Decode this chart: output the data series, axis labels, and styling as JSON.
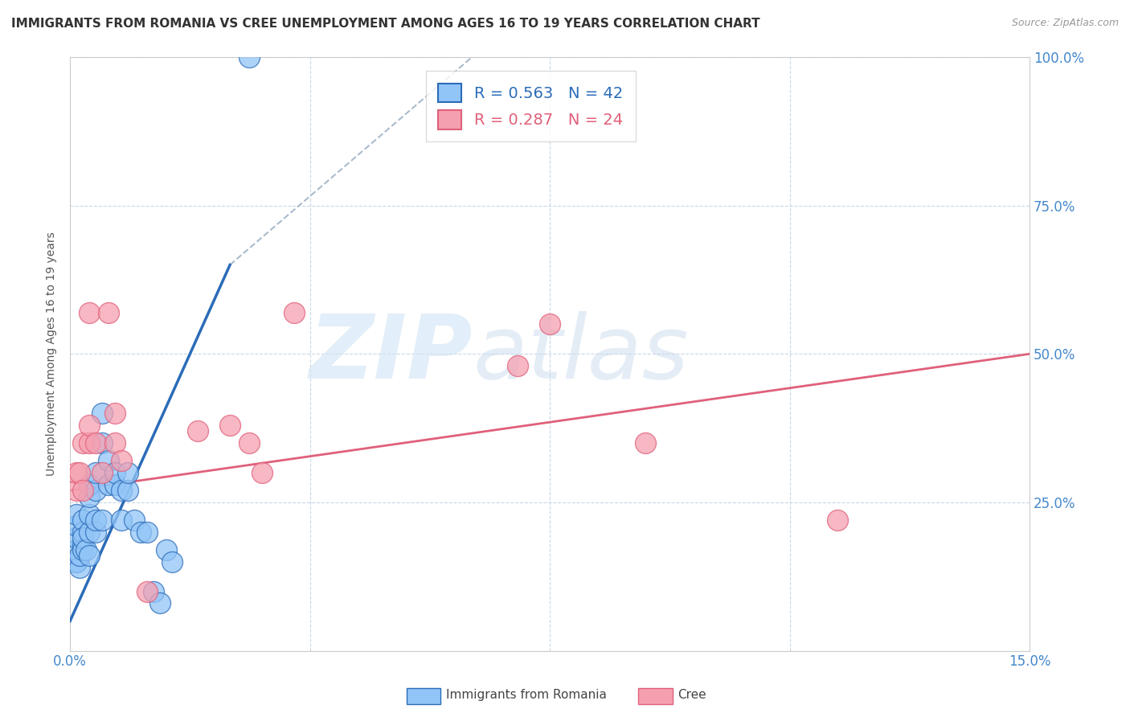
{
  "title": "IMMIGRANTS FROM ROMANIA VS CREE UNEMPLOYMENT AMONG AGES 16 TO 19 YEARS CORRELATION CHART",
  "source": "Source: ZipAtlas.com",
  "ylabel": "Unemployment Among Ages 16 to 19 years",
  "xlim": [
    0.0,
    0.15
  ],
  "ylim": [
    0.0,
    1.0
  ],
  "xticks": [
    0.0,
    0.0375,
    0.075,
    0.1125,
    0.15
  ],
  "xticklabels": [
    "0.0%",
    "",
    "",
    "",
    "15.0%"
  ],
  "yticks": [
    0.0,
    0.25,
    0.5,
    0.75,
    1.0
  ],
  "yticklabels_right": [
    "",
    "25.0%",
    "50.0%",
    "75.0%",
    "100.0%"
  ],
  "romania_R": 0.563,
  "romania_N": 42,
  "cree_R": 0.287,
  "cree_N": 24,
  "romania_color": "#92C5F7",
  "cree_color": "#F5A0B0",
  "romania_line_color": "#2B6CB8",
  "cree_line_color": "#E0607A",
  "background_color": "#ffffff",
  "grid_color": "#c8d8e8",
  "title_fontsize": 11,
  "axis_label_fontsize": 10,
  "tick_fontsize": 12,
  "legend_fontsize": 14,
  "romania_x": [
    0.001,
    0.001,
    0.001,
    0.001,
    0.001,
    0.001,
    0.0015,
    0.0015,
    0.002,
    0.002,
    0.002,
    0.002,
    0.002,
    0.0025,
    0.003,
    0.003,
    0.003,
    0.003,
    0.003,
    0.004,
    0.004,
    0.004,
    0.004,
    0.005,
    0.005,
    0.005,
    0.006,
    0.006,
    0.007,
    0.007,
    0.008,
    0.008,
    0.009,
    0.009,
    0.01,
    0.011,
    0.012,
    0.013,
    0.014,
    0.015,
    0.016,
    0.028
  ],
  "romania_y": [
    0.15,
    0.17,
    0.19,
    0.21,
    0.23,
    0.15,
    0.14,
    0.16,
    0.18,
    0.2,
    0.22,
    0.17,
    0.19,
    0.17,
    0.2,
    0.23,
    0.26,
    0.28,
    0.16,
    0.2,
    0.22,
    0.27,
    0.3,
    0.22,
    0.35,
    0.4,
    0.28,
    0.32,
    0.28,
    0.3,
    0.22,
    0.27,
    0.27,
    0.3,
    0.22,
    0.2,
    0.2,
    0.1,
    0.08,
    0.17,
    0.15,
    1.0
  ],
  "cree_x": [
    0.001,
    0.001,
    0.0015,
    0.002,
    0.002,
    0.003,
    0.003,
    0.003,
    0.004,
    0.005,
    0.006,
    0.007,
    0.007,
    0.008,
    0.012,
    0.02,
    0.025,
    0.028,
    0.03,
    0.035,
    0.07,
    0.075,
    0.09,
    0.12
  ],
  "cree_y": [
    0.27,
    0.3,
    0.3,
    0.27,
    0.35,
    0.35,
    0.38,
    0.57,
    0.35,
    0.3,
    0.57,
    0.35,
    0.4,
    0.32,
    0.1,
    0.37,
    0.38,
    0.35,
    0.3,
    0.57,
    0.48,
    0.55,
    0.35,
    0.22
  ],
  "romania_trend_x": [
    0.0,
    0.025
  ],
  "romania_trend_y": [
    0.05,
    0.65
  ],
  "cree_trend_x": [
    0.0,
    0.15
  ],
  "cree_trend_y": [
    0.27,
    0.5
  ],
  "dash_line_x": [
    0.025,
    0.065
  ],
  "dash_line_y": [
    0.65,
    1.02
  ]
}
